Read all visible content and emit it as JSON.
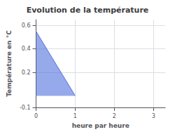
{
  "chart_data": {
    "type": "area",
    "title": "Evolution de la température",
    "xlabel": "heure par heure",
    "ylabel": "Température en °C",
    "x": [
      0,
      1
    ],
    "values": [
      0.55,
      0.0
    ],
    "xlim": [
      0,
      3.3
    ],
    "ylim": [
      -0.1,
      0.65
    ],
    "xticks": [
      0,
      1,
      2,
      3
    ],
    "yticks": [
      -0.1,
      0.2,
      0.4,
      0.6
    ],
    "grid": true
  }
}
